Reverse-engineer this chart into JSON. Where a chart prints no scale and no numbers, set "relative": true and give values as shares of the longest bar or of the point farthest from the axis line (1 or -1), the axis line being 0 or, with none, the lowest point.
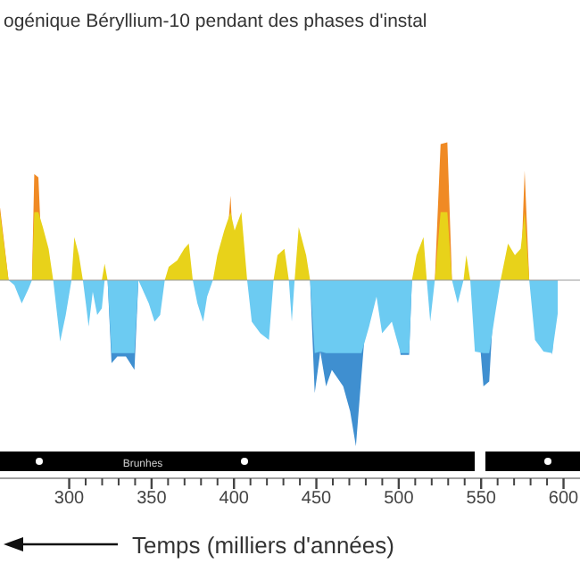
{
  "chart_data": {
    "type": "area",
    "title": "ogénique Béryllium-10 pendant des phases d'instal",
    "xlabel": "Temps (milliers d'années)",
    "relative": true,
    "grid": false,
    "annotations": [
      "Brunhes"
    ],
    "xlim": [
      258,
      610
    ],
    "xticks": [
      300,
      350,
      400,
      450,
      500,
      550,
      600
    ],
    "x": [
      258,
      263.2,
      266.7,
      271.2,
      275.4,
      277.4,
      278.8,
      281.3,
      284,
      287.5,
      290.3,
      292.7,
      294.5,
      297.9,
      301.4,
      303.1,
      305.9,
      308.3,
      310.1,
      311.8,
      314.3,
      317,
      319.8,
      321.5,
      323.3,
      325.7,
      329.2,
      334.4,
      339.6,
      342,
      348.3,
      351.8,
      355.2,
      358,
      360.4,
      365.6,
      369.8,
      372.6,
      375,
      377.8,
      381.3,
      383.7,
      387.2,
      389.9,
      394.1,
      397.9,
      400.4,
      404.5,
      408,
      410.8,
      416,
      421.2,
      424,
      426.4,
      430.6,
      433.3,
      435.1,
      436.8,
      439.3,
      443.8,
      446.2,
      449,
      452.4,
      455.9,
      459.4,
      466.3,
      470.5,
      474,
      477.4,
      482,
      486.5,
      489.9,
      495.8,
      501.1,
      506.3,
      508,
      510.8,
      515,
      517,
      519.1,
      521.9,
      525.4,
      529.5,
      532.3,
      535.8,
      539.3,
      541,
      543.4,
      546.2,
      551.4,
      554.9,
      558.4,
      561.8,
      566.3,
      570.5,
      574,
      576.4,
      579.2,
      582.7,
      587.9,
      593.1,
      596.5
    ],
    "series": [
      {
        "color": "#f08a24",
        "values": [
          0.44,
          0,
          0,
          0,
          0,
          0,
          0.64,
          0.62,
          0,
          0,
          0,
          0,
          0,
          0,
          0,
          0,
          0,
          0,
          0,
          0,
          0,
          0,
          0,
          0,
          0,
          0,
          0,
          0,
          0,
          0,
          0,
          0,
          0,
          0,
          0,
          0,
          0,
          0,
          0,
          0,
          0,
          0,
          0,
          0,
          0,
          0.51,
          0,
          0,
          0,
          0,
          0,
          0,
          0,
          0,
          0,
          0,
          0,
          0,
          0,
          0,
          0,
          0,
          0,
          0,
          0,
          0,
          0,
          0,
          0,
          0,
          0,
          0,
          0,
          0,
          0,
          0,
          0,
          0,
          0,
          0,
          0,
          0.82,
          0.83,
          0,
          0,
          0,
          0,
          0,
          0,
          0,
          0,
          0,
          0,
          0,
          0,
          0,
          0.66,
          0,
          0,
          0,
          0,
          0
        ]
      },
      {
        "color": "#e8d21a",
        "values": [
          0.41,
          0,
          0,
          0,
          0,
          0,
          0.41,
          0.41,
          0.32,
          0.19,
          0,
          0,
          0,
          0,
          0,
          0.26,
          0.15,
          0,
          0,
          0,
          0,
          0,
          0,
          0.1,
          0,
          0,
          0,
          0,
          0,
          0,
          0,
          0,
          0,
          0,
          0.08,
          0.12,
          0.19,
          0.22,
          0,
          0,
          0,
          0,
          0,
          0.15,
          0.3,
          0.41,
          0.3,
          0.41,
          0,
          0,
          0,
          0,
          0,
          0.15,
          0.19,
          0,
          0,
          0,
          0.32,
          0.15,
          0,
          0,
          0,
          0,
          0,
          0,
          0,
          0,
          0,
          0,
          0,
          0,
          0,
          0,
          0,
          0,
          0.15,
          0.26,
          0,
          0,
          0,
          0.41,
          0.41,
          0,
          0,
          0,
          0.15,
          0,
          0,
          0,
          0,
          0,
          0,
          0.22,
          0.15,
          0.19,
          0.41,
          0,
          0,
          0,
          0,
          0
        ]
      },
      {
        "color": "#3f8fd0",
        "values": [
          0,
          0,
          0,
          0,
          0,
          0,
          0,
          0,
          0,
          0,
          0,
          0,
          0,
          0,
          0,
          0,
          0,
          0,
          0,
          0,
          0,
          0,
          0,
          0,
          0,
          -0.5,
          -0.46,
          -0.46,
          -0.54,
          0,
          0,
          0,
          0,
          0,
          0,
          0,
          0,
          0,
          0,
          0,
          0,
          0,
          0,
          0,
          0,
          0,
          0,
          0,
          0,
          0,
          0,
          0,
          0,
          0,
          0,
          0,
          0,
          0,
          0,
          0,
          0,
          -0.68,
          -0.43,
          -0.64,
          -0.54,
          -0.64,
          -0.79,
          -1,
          -0.57,
          0,
          0,
          0,
          0,
          -0.45,
          -0.45,
          0,
          0,
          0,
          0,
          0,
          0,
          0,
          0,
          0,
          0,
          0,
          0,
          0,
          0,
          -0.64,
          -0.61,
          0,
          0,
          0,
          0,
          0,
          0,
          0,
          0,
          0,
          -0.45,
          0
        ]
      },
      {
        "color": "#6ccbf2",
        "values": [
          0,
          0,
          -0.03,
          -0.14,
          -0.05,
          0,
          0,
          0,
          0,
          0,
          0,
          -0.21,
          -0.37,
          -0.21,
          0,
          0,
          0,
          0,
          -0.14,
          -0.28,
          -0.07,
          -0.21,
          -0.17,
          0,
          0,
          -0.44,
          -0.44,
          -0.44,
          -0.44,
          0,
          -0.14,
          -0.25,
          -0.21,
          0,
          0,
          0,
          0,
          0,
          0,
          -0.14,
          -0.25,
          -0.1,
          0,
          0,
          0,
          0,
          0,
          0,
          0,
          -0.25,
          -0.32,
          -0.36,
          0,
          0,
          0,
          0,
          -0.25,
          0,
          0,
          0,
          0,
          -0.44,
          -0.43,
          -0.44,
          -0.44,
          -0.44,
          -0.44,
          -0.44,
          -0.44,
          -0.28,
          -0.1,
          -0.32,
          -0.25,
          -0.44,
          -0.44,
          0,
          0,
          0,
          0,
          -0.25,
          0,
          0,
          0,
          0,
          -0.14,
          0,
          0,
          0,
          -0.43,
          -0.44,
          -0.44,
          -0.21,
          0,
          0,
          0,
          0,
          0,
          0,
          -0.36,
          -0.43,
          -0.44,
          -0.2
        ]
      }
    ]
  }
}
